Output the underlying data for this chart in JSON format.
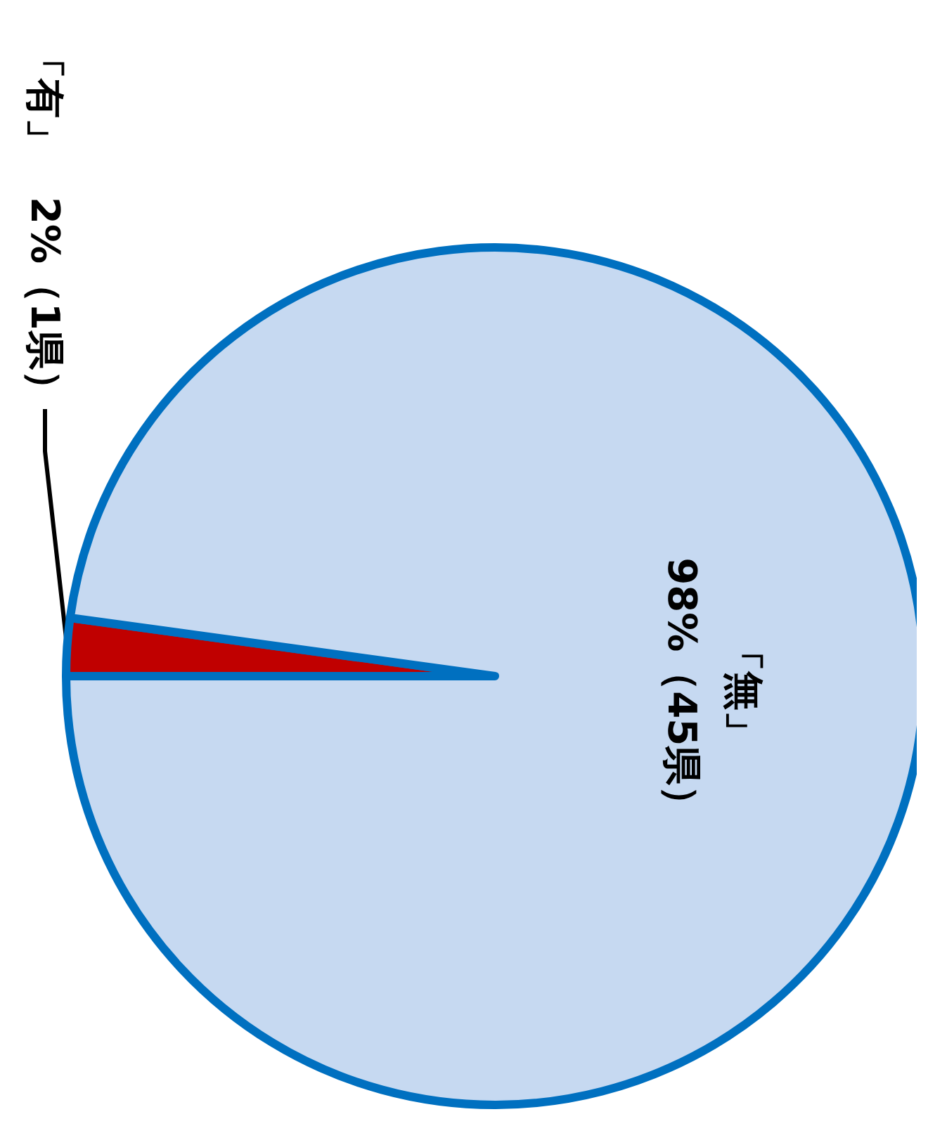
{
  "chart_data": {
    "type": "pie",
    "categories": [
      "「有」",
      "「無」"
    ],
    "values": [
      1,
      45
    ],
    "value_labels": [
      "2%（1県）",
      "98%（45県）"
    ],
    "colors": [
      "#c00000",
      "#c6d9f1"
    ],
    "legend": false
  }
}
